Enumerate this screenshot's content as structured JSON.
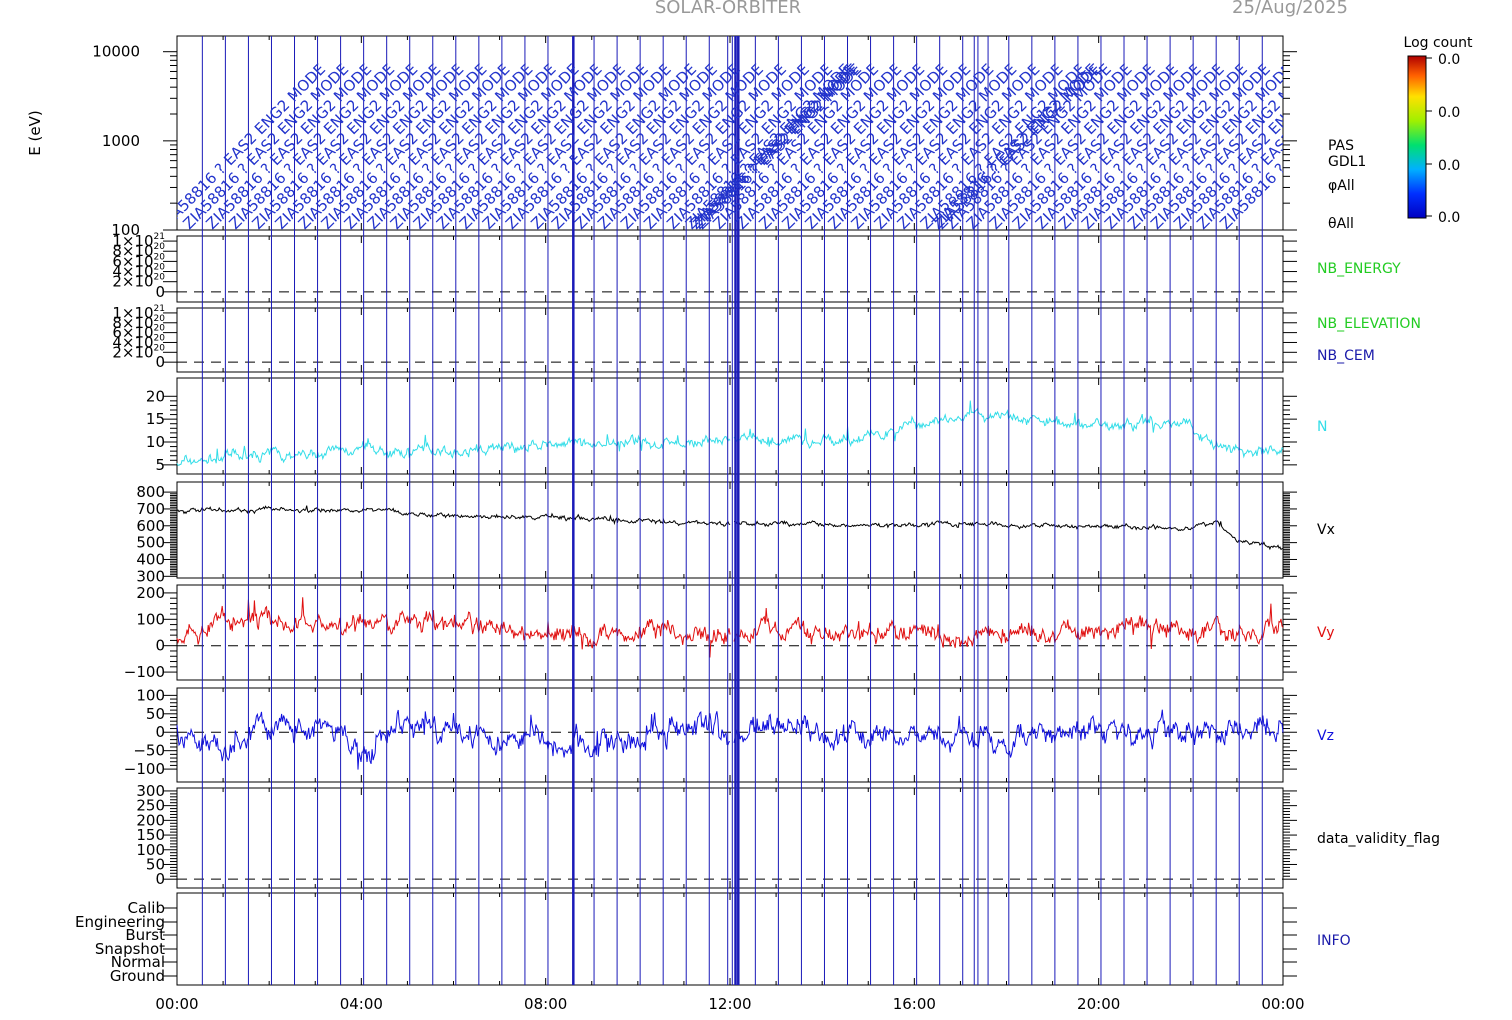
{
  "title": "SOLAR-ORBITER",
  "date_label": "25/Aug/2025",
  "colors": {
    "frame": "#000000",
    "mode_line": "#1a1ab8",
    "density": "#33dde8",
    "vx": "#000000",
    "vy": "#e01010",
    "vz": "#1010dd",
    "green_label": "#22cc22",
    "blue_label": "#1a1aaa"
  },
  "mode_annotation_text": "ZIA58816 ? EAS2 ENG2 MODE",
  "colorbar": {
    "label": "Log count",
    "ticks": [
      "0.0",
      "0.0",
      "0.0",
      "0.0"
    ]
  },
  "chart_data": [
    {
      "type": "line",
      "panel": "energy",
      "ylabel": "E (eV)",
      "yscale": "log",
      "ylim": [
        100,
        15000
      ],
      "yticks": [
        "10000",
        "1000",
        "100"
      ],
      "right_labels": [
        "PAS",
        "GDL1",
        "φAll",
        "θAll"
      ]
    },
    {
      "type": "line",
      "panel": "nb_energy",
      "ylim": [
        -2e+20,
        1.1e+21
      ],
      "yticks": [
        {
          "base": "1×10",
          "exp": "21"
        },
        {
          "base": "8×10",
          "exp": "20"
        },
        {
          "base": "6×10",
          "exp": "20"
        },
        {
          "base": "4×10",
          "exp": "20"
        },
        {
          "base": "2×10",
          "exp": "20"
        },
        {
          "base": "0",
          "exp": ""
        }
      ],
      "series": [
        {
          "name": "NB_ENERGY",
          "values": [
            0
          ]
        }
      ]
    },
    {
      "type": "line",
      "panel": "nb_elevation",
      "ylim": [
        -2e+20,
        1.1e+21
      ],
      "yticks": [
        {
          "base": "1×10",
          "exp": "21"
        },
        {
          "base": "8×10",
          "exp": "20"
        },
        {
          "base": "6×10",
          "exp": "20"
        },
        {
          "base": "4×10",
          "exp": "20"
        },
        {
          "base": "2×10",
          "exp": "20"
        },
        {
          "base": "0",
          "exp": ""
        }
      ],
      "series": [
        {
          "name": "NB_ELEVATION",
          "values": [
            0
          ]
        },
        {
          "name": "NB_CEM",
          "values": [
            0
          ]
        }
      ]
    },
    {
      "type": "line",
      "panel": "density",
      "ylim": [
        3,
        24
      ],
      "yticks": [
        "20",
        "15",
        "10",
        "5"
      ],
      "series": [
        {
          "name": "N",
          "x_hours": [
            0,
            1,
            2,
            3,
            4,
            5,
            6,
            7,
            8,
            9,
            10,
            11,
            12,
            13,
            14,
            15,
            16,
            17,
            18,
            19,
            20,
            21,
            22,
            22.5,
            23,
            24
          ],
          "values": [
            5.5,
            6.5,
            7.5,
            7.5,
            8,
            8,
            8,
            9,
            9,
            9.5,
            9.5,
            10,
            10,
            10,
            10.5,
            11,
            14,
            15,
            16,
            14,
            14,
            14,
            14,
            9,
            8.5,
            8
          ]
        }
      ]
    },
    {
      "type": "line",
      "panel": "vx",
      "ylim": [
        290,
        860
      ],
      "yticks": [
        "800",
        "700",
        "600",
        "500",
        "400",
        "300"
      ],
      "series": [
        {
          "name": "Vx",
          "x_hours": [
            0,
            1,
            2,
            3,
            4,
            5,
            6,
            7,
            8,
            9,
            10,
            11,
            12,
            13,
            14,
            15,
            16,
            17,
            18,
            19,
            20,
            21,
            22,
            22.6,
            23,
            24
          ],
          "values": [
            690,
            690,
            700,
            690,
            700,
            680,
            660,
            650,
            650,
            640,
            630,
            620,
            615,
            610,
            605,
            600,
            610,
            615,
            610,
            600,
            600,
            590,
            590,
            620,
            510,
            470
          ]
        }
      ]
    },
    {
      "type": "line",
      "panel": "vy",
      "ylim": [
        -130,
        230
      ],
      "yticks": [
        "200",
        "100",
        "0",
        "−100"
      ],
      "series": [
        {
          "name": "Vy",
          "x_hours": [
            0,
            1,
            2,
            3,
            4,
            5,
            6,
            7,
            8,
            9,
            10,
            11,
            12,
            13,
            14,
            15,
            16,
            17,
            18,
            19,
            20,
            21,
            22,
            23,
            24
          ],
          "values": [
            40,
            90,
            110,
            100,
            80,
            90,
            70,
            60,
            40,
            40,
            70,
            60,
            60,
            50,
            60,
            50,
            50,
            40,
            50,
            60,
            60,
            70,
            50,
            30,
            70
          ]
        }
      ]
    },
    {
      "type": "line",
      "panel": "vz",
      "ylim": [
        -135,
        120
      ],
      "yticks": [
        "100",
        "50",
        "0",
        "−50",
        "−100"
      ],
      "series": [
        {
          "name": "Vz",
          "x_hours": [
            0,
            1,
            2,
            3,
            4,
            5,
            6,
            7,
            8,
            9,
            10,
            11,
            12,
            13,
            14,
            15,
            16,
            17,
            18,
            19,
            20,
            21,
            22,
            23,
            24
          ],
          "values": [
            0,
            -40,
            10,
            20,
            -50,
            20,
            10,
            -10,
            -10,
            -20,
            -10,
            10,
            -20,
            20,
            0,
            -20,
            -10,
            -20,
            -10,
            0,
            -10,
            -10,
            0,
            10,
            0
          ]
        }
      ]
    },
    {
      "type": "line",
      "panel": "validity",
      "ylim": [
        -30,
        310
      ],
      "yticks": [
        "300",
        "250",
        "200",
        "150",
        "100",
        "50",
        "0"
      ],
      "series": [
        {
          "name": "data_validity_flag",
          "values": []
        }
      ]
    },
    {
      "type": "line",
      "panel": "info",
      "yticks": [
        "Calib",
        "Engineering",
        "Burst",
        "Snapshot",
        "Normal",
        "Ground"
      ],
      "series": [
        {
          "name": "INFO",
          "values": []
        }
      ]
    }
  ],
  "x_axis": {
    "xlim_hours": [
      0,
      24
    ],
    "tick_labels": [
      "00:00",
      "04:00",
      "08:00",
      "12:00",
      "16:00",
      "20:00",
      "00:00"
    ]
  },
  "mode_change_hours": [
    0.55,
    1.05,
    1.55,
    2.05,
    2.55,
    3.05,
    3.55,
    4.05,
    4.55,
    5.05,
    5.55,
    6.05,
    6.55,
    7.05,
    7.55,
    8.05,
    8.6,
    9.05,
    9.55,
    10.05,
    10.55,
    11.05,
    11.55,
    11.95,
    12.05,
    12.12,
    12.18,
    12.55,
    13.05,
    13.55,
    14.05,
    14.55,
    15.05,
    15.55,
    16.05,
    16.55,
    17.05,
    17.3,
    17.38,
    17.6,
    18.05,
    18.55,
    19.05,
    19.55,
    20.05,
    20.55,
    21.05,
    21.55,
    22.05,
    22.55,
    23.05,
    23.55
  ]
}
